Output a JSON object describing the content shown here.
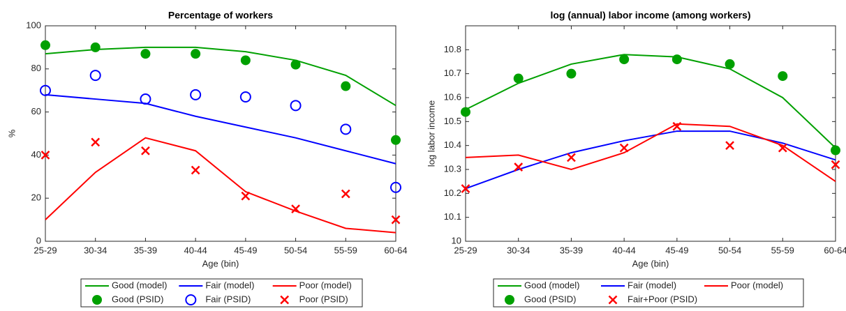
{
  "chart_data": [
    {
      "type": "line",
      "title": "Percentage of workers",
      "x_label": "Age (bin)",
      "y_label": "%",
      "categories": [
        "25-29",
        "30-34",
        "35-39",
        "40-44",
        "45-49",
        "50-54",
        "55-59",
        "60-64"
      ],
      "ylim": [
        0,
        100
      ],
      "yticks": [
        0,
        20,
        40,
        60,
        80,
        100
      ],
      "series": [
        {
          "name": "Good (model)",
          "color": "#00a000",
          "marker": "line",
          "values": [
            87,
            89,
            90,
            90,
            88,
            84,
            77,
            63
          ]
        },
        {
          "name": "Fair (model)",
          "color": "#0000ff",
          "marker": "line",
          "values": [
            68,
            66,
            64,
            58,
            53,
            48,
            42,
            36
          ]
        },
        {
          "name": "Poor (model)",
          "color": "#ff0000",
          "marker": "line",
          "values": [
            10,
            32,
            48,
            42,
            23,
            14,
            6,
            4
          ]
        },
        {
          "name": "Good (PSID)",
          "color": "#00a000",
          "marker": "filled-circle",
          "values": [
            91,
            90,
            87,
            87,
            84,
            82,
            72,
            47
          ]
        },
        {
          "name": "Fair (PSID)",
          "color": "#0000ff",
          "marker": "open-circle",
          "values": [
            70,
            77,
            66,
            68,
            67,
            63,
            52,
            25
          ]
        },
        {
          "name": "Poor (PSID)",
          "color": "#ff0000",
          "marker": "cross",
          "values": [
            40,
            46,
            42,
            33,
            21,
            15,
            22,
            10
          ]
        }
      ]
    },
    {
      "type": "line",
      "title": "log (annual) labor income (among workers)",
      "x_label": "Age (bin)",
      "y_label": "log labor income",
      "categories": [
        "25-29",
        "30-34",
        "35-39",
        "40-44",
        "45-49",
        "50-54",
        "55-59",
        "60-64"
      ],
      "ylim": [
        10,
        10.9
      ],
      "yticks": [
        10,
        10.1,
        10.2,
        10.3,
        10.4,
        10.5,
        10.6,
        10.7,
        10.8
      ],
      "series": [
        {
          "name": "Good (model)",
          "color": "#00a000",
          "marker": "line",
          "values": [
            10.55,
            10.66,
            10.74,
            10.78,
            10.77,
            10.72,
            10.6,
            10.39
          ]
        },
        {
          "name": "Fair (model)",
          "color": "#0000ff",
          "marker": "line",
          "values": [
            10.22,
            10.3,
            10.37,
            10.42,
            10.46,
            10.46,
            10.41,
            10.34
          ]
        },
        {
          "name": "Poor (model)",
          "color": "#ff0000",
          "marker": "line",
          "values": [
            10.35,
            10.36,
            10.3,
            10.37,
            10.49,
            10.48,
            10.4,
            10.25
          ]
        },
        {
          "name": "Good (PSID)",
          "color": "#00a000",
          "marker": "filled-circle",
          "values": [
            10.54,
            10.68,
            10.7,
            10.76,
            10.76,
            10.74,
            10.69,
            10.38
          ]
        },
        {
          "name": "Fair+Poor (PSID)",
          "color": "#ff0000",
          "marker": "cross",
          "values": [
            10.22,
            10.31,
            10.35,
            10.39,
            10.48,
            10.4,
            10.39,
            10.32
          ]
        }
      ]
    }
  ]
}
